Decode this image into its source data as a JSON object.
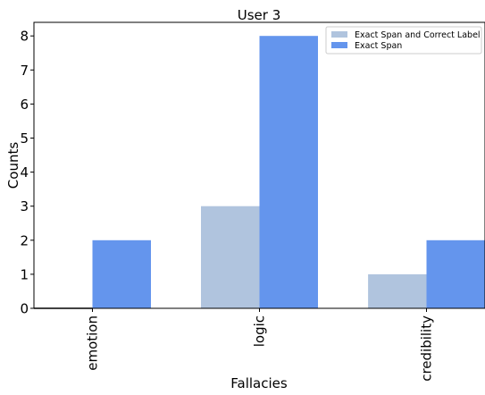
{
  "chart_data": {
    "type": "bar",
    "title": "User 3",
    "xlabel": "Fallacies",
    "ylabel": "Counts",
    "categories": [
      "emotion",
      "logic",
      "credibility"
    ],
    "series": [
      {
        "name": "Exact Span and Correct Label",
        "color": "#b0c4de",
        "values": [
          0,
          3,
          1
        ]
      },
      {
        "name": "Exact Span",
        "color": "#6495ed",
        "values": [
          2,
          8,
          2
        ]
      }
    ],
    "ylim": [
      0,
      8.4
    ],
    "yticks": [
      "0",
      "1",
      "2",
      "3",
      "4",
      "5",
      "6",
      "7",
      "8"
    ],
    "grid": false,
    "legend_position": "top-right"
  }
}
